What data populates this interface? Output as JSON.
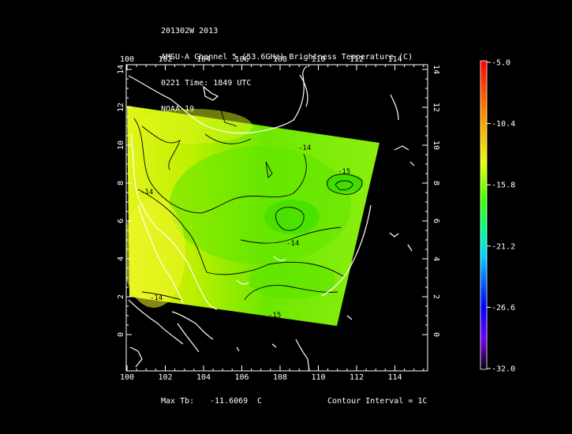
{
  "header": {
    "line1": "201302W 2013",
    "line2": "AMSU-A Channel 5 (53.6GHz) Brightness Temperature (C)",
    "line3": "0221 Time: 1849 UTC",
    "line4": "NOAA-19"
  },
  "map": {
    "lon_ticks": [
      "100",
      "102",
      "104",
      "106",
      "108",
      "110",
      "112",
      "114"
    ],
    "lat_ticks": [
      "0",
      "2",
      "4",
      "6",
      "8",
      "10",
      "12",
      "14"
    ],
    "contour_labels": [
      "-15",
      "-14",
      "-14",
      "-14",
      "-14",
      "-15"
    ]
  },
  "colorbar": {
    "labels": [
      "-5.0",
      "-10.4",
      "-15.8",
      "-21.2",
      "-26.6",
      "-32.0"
    ],
    "colors": [
      "#ff0000",
      "#ff8000",
      "#ffff00",
      "#80ff00",
      "#00ff00",
      "#00ffff",
      "#0060ff",
      "#0000ff",
      "#8000ff",
      "#400060",
      "#000000"
    ]
  },
  "footer": {
    "max_tb_label": "Max Tb:",
    "max_tb_value": "-11.6069",
    "max_tb_unit": "C",
    "contour_interval": "Contour Interval = 1C"
  }
}
